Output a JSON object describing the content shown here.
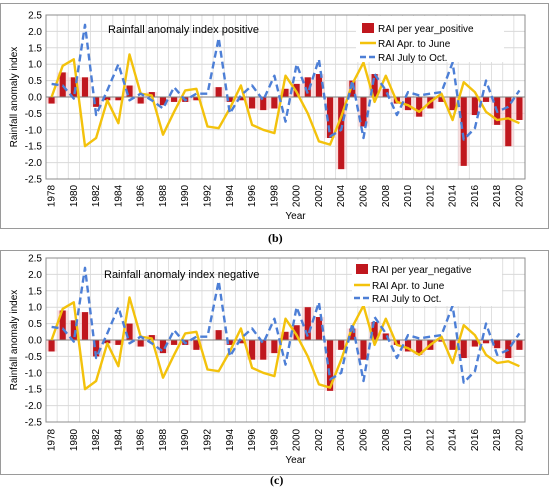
{
  "colors": {
    "bar": "#c0171e",
    "bar_shade": "#f5c6c8",
    "apr_jun": "#f3c20c",
    "jul_oct": "#4d7fd6",
    "grid": "#d9d9d9",
    "frame": "#8c8c8c"
  },
  "chart_data": [
    {
      "type": "bar",
      "panel_label": "(b)",
      "title": "Rainfall anomaly index positive",
      "xlabel": "Year",
      "ylabel": "Rainfall anomaly index",
      "ylim": [
        -2.5,
        2.5
      ],
      "yticks": [
        "-2.5",
        "-2.0",
        "-1.5",
        "-1.0",
        "-0.5",
        "0.0",
        "0.5",
        "1.0",
        "1.5",
        "2.0",
        "2.5"
      ],
      "xticks": [
        "1978",
        "1980",
        "1982",
        "1984",
        "1986",
        "1988",
        "1990",
        "1992",
        "1994",
        "1996",
        "1998",
        "2000",
        "2002",
        "2004",
        "2006",
        "2008",
        "2010",
        "2012",
        "2014",
        "2016",
        "2018",
        "2020"
      ],
      "legend_position": "top-right",
      "x": [
        1978,
        1979,
        1980,
        1981,
        1982,
        1983,
        1984,
        1985,
        1986,
        1987,
        1988,
        1989,
        1990,
        1991,
        1992,
        1993,
        1994,
        1995,
        1996,
        1997,
        1998,
        1999,
        2000,
        2001,
        2002,
        2003,
        2004,
        2005,
        2006,
        2007,
        2008,
        2009,
        2010,
        2011,
        2012,
        2013,
        2014,
        2015,
        2016,
        2017,
        2018,
        2019,
        2020
      ],
      "series": [
        {
          "name": "RAI  per year_positive",
          "kind": "bar",
          "values": [
            -0.2,
            0.75,
            0.6,
            0.6,
            -0.3,
            -0.1,
            -0.1,
            0.35,
            -0.2,
            0.15,
            -0.25,
            -0.15,
            -0.15,
            -0.1,
            0.0,
            0.3,
            -0.15,
            -0.1,
            -0.35,
            -0.4,
            -0.35,
            0.25,
            0.4,
            0.6,
            0.7,
            -1.25,
            -2.2,
            0.5,
            -0.9,
            0.7,
            0.25,
            -0.2,
            -0.4,
            -0.6,
            -0.35,
            -0.15,
            -0.4,
            -2.1,
            -0.55,
            -0.15,
            -0.85,
            -1.5,
            -0.7
          ]
        },
        {
          "name": "RAI Apr. to June",
          "kind": "line",
          "values": [
            0.0,
            0.95,
            1.15,
            -1.5,
            -1.25,
            -0.1,
            -0.8,
            1.3,
            0.1,
            0.05,
            -1.15,
            -0.45,
            0.2,
            0.25,
            -0.9,
            -0.95,
            -0.35,
            0.35,
            -0.85,
            -1.0,
            -1.1,
            0.65,
            0.15,
            -0.5,
            -1.35,
            -1.45,
            -0.6,
            0.4,
            1.05,
            -0.15,
            0.65,
            -0.15,
            -0.25,
            -0.45,
            -0.15,
            0.1,
            -0.7,
            0.45,
            0.15,
            -0.45,
            -0.7,
            -0.65,
            -0.8
          ]
        },
        {
          "name": "RAI July to Oct.",
          "kind": "dashed",
          "values": [
            0.4,
            0.35,
            -0.05,
            2.2,
            -0.55,
            0.2,
            1.0,
            -0.1,
            0.1,
            -0.1,
            -0.35,
            0.3,
            -0.1,
            0.1,
            0.1,
            1.8,
            -0.5,
            0.05,
            0.35,
            -0.1,
            0.65,
            -0.75,
            1.0,
            0.1,
            1.15,
            -1.2,
            -1.0,
            0.5,
            -1.25,
            0.7,
            0.2,
            -0.55,
            0.15,
            0.05,
            0.1,
            0.15,
            1.05,
            -1.3,
            -0.95,
            0.5,
            -0.45,
            -0.3,
            0.2
          ]
        }
      ]
    },
    {
      "type": "bar",
      "panel_label": "(c)",
      "title": "Rainfall anomaly index negative",
      "xlabel": "Year",
      "ylabel": "Rainfall anomaly index",
      "ylim": [
        -2.5,
        2.5
      ],
      "yticks": [
        "-2.5",
        "-2.0",
        "-1.5",
        "-1.0",
        "-0.5",
        "0.0",
        "0.5",
        "1.0",
        "1.5",
        "2.0",
        "2.5"
      ],
      "xticks": [
        "1978",
        "1980",
        "1982",
        "1984",
        "1986",
        "1988",
        "1990",
        "1992",
        "1994",
        "1996",
        "1998",
        "2000",
        "2002",
        "2004",
        "2006",
        "2008",
        "2010",
        "2012",
        "2014",
        "2016",
        "2018",
        "2020"
      ],
      "legend_position": "top-right",
      "x": [
        1978,
        1979,
        1980,
        1981,
        1982,
        1983,
        1984,
        1985,
        1986,
        1987,
        1988,
        1989,
        1990,
        1991,
        1992,
        1993,
        1994,
        1995,
        1996,
        1997,
        1998,
        1999,
        2000,
        2001,
        2002,
        2003,
        2004,
        2005,
        2006,
        2007,
        2008,
        2009,
        2010,
        2011,
        2012,
        2013,
        2014,
        2015,
        2016,
        2017,
        2018,
        2019,
        2020
      ],
      "series": [
        {
          "name": "RAI  per year_negative",
          "kind": "bar",
          "values": [
            -0.35,
            0.9,
            0.6,
            0.85,
            -0.5,
            -0.1,
            -0.15,
            0.5,
            -0.2,
            0.15,
            -0.4,
            -0.15,
            -0.15,
            -0.3,
            0.0,
            0.3,
            -0.15,
            -0.1,
            -0.6,
            -0.6,
            -0.4,
            0.25,
            0.45,
            1.0,
            0.7,
            -1.55,
            -0.3,
            0.35,
            -0.6,
            0.55,
            0.2,
            -0.15,
            -0.35,
            -0.45,
            -0.3,
            -0.05,
            -0.3,
            -0.55,
            -0.2,
            -0.1,
            -0.25,
            -0.55,
            -0.3
          ]
        },
        {
          "name": "RAI Apr. to June",
          "kind": "line",
          "values": [
            0.0,
            0.95,
            1.15,
            -1.5,
            -1.25,
            -0.1,
            -0.8,
            1.3,
            0.1,
            0.05,
            -1.15,
            -0.45,
            0.2,
            0.25,
            -0.9,
            -0.95,
            -0.35,
            0.35,
            -0.85,
            -1.0,
            -1.1,
            0.65,
            0.15,
            -0.5,
            -1.35,
            -1.45,
            -0.6,
            0.4,
            1.05,
            -0.15,
            0.65,
            -0.15,
            -0.25,
            -0.45,
            -0.15,
            0.1,
            -0.7,
            0.45,
            0.15,
            -0.45,
            -0.7,
            -0.65,
            -0.8
          ]
        },
        {
          "name": "RAI July to Oct.",
          "kind": "dashed",
          "values": [
            0.4,
            0.35,
            -0.05,
            2.2,
            -0.55,
            0.2,
            1.0,
            -0.1,
            0.1,
            -0.1,
            -0.35,
            0.3,
            -0.1,
            0.1,
            0.1,
            1.8,
            -0.5,
            0.05,
            0.35,
            -0.1,
            0.65,
            -0.75,
            1.0,
            0.1,
            1.15,
            -1.2,
            -1.0,
            0.5,
            -1.25,
            0.7,
            0.2,
            -0.55,
            0.15,
            0.05,
            0.1,
            0.15,
            1.05,
            -1.3,
            -0.95,
            0.5,
            -0.45,
            -0.3,
            0.2
          ]
        }
      ]
    }
  ]
}
